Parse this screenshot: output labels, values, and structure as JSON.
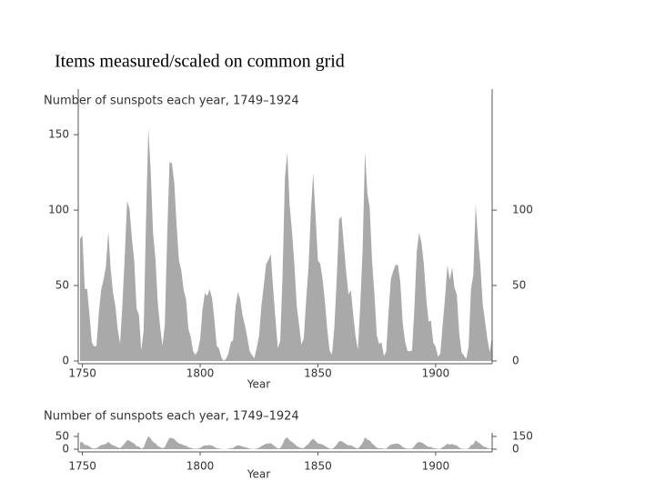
{
  "slide_title": "Items measured/scaled on common grid",
  "chart_data": [
    {
      "type": "area",
      "title": "Number of sunspots each year, 1749–1924",
      "xlabel": "Year",
      "color": "#a9a9a9",
      "x": [
        1749,
        1750,
        1751,
        1752,
        1753,
        1754,
        1755,
        1756,
        1757,
        1758,
        1759,
        1760,
        1761,
        1762,
        1763,
        1764,
        1765,
        1766,
        1767,
        1768,
        1769,
        1770,
        1771,
        1772,
        1773,
        1774,
        1775,
        1776,
        1777,
        1778,
        1779,
        1780,
        1781,
        1782,
        1783,
        1784,
        1785,
        1786,
        1787,
        1788,
        1789,
        1790,
        1791,
        1792,
        1793,
        1794,
        1795,
        1796,
        1797,
        1798,
        1799,
        1800,
        1801,
        1802,
        1803,
        1804,
        1805,
        1806,
        1807,
        1808,
        1809,
        1810,
        1811,
        1812,
        1813,
        1814,
        1815,
        1816,
        1817,
        1818,
        1819,
        1820,
        1821,
        1822,
        1823,
        1824,
        1825,
        1826,
        1827,
        1828,
        1829,
        1830,
        1831,
        1832,
        1833,
        1834,
        1835,
        1836,
        1837,
        1838,
        1839,
        1840,
        1841,
        1842,
        1843,
        1844,
        1845,
        1846,
        1847,
        1848,
        1849,
        1850,
        1851,
        1852,
        1853,
        1854,
        1855,
        1856,
        1857,
        1858,
        1859,
        1860,
        1861,
        1862,
        1863,
        1864,
        1865,
        1866,
        1867,
        1868,
        1869,
        1870,
        1871,
        1872,
        1873,
        1874,
        1875,
        1876,
        1877,
        1878,
        1879,
        1880,
        1881,
        1882,
        1883,
        1884,
        1885,
        1886,
        1887,
        1888,
        1889,
        1890,
        1891,
        1892,
        1893,
        1894,
        1895,
        1896,
        1897,
        1898,
        1899,
        1900,
        1901,
        1902,
        1903,
        1904,
        1905,
        1906,
        1907,
        1908,
        1909,
        1910,
        1911,
        1912,
        1913,
        1914,
        1915,
        1916,
        1917,
        1918,
        1919,
        1920,
        1921,
        1922,
        1923,
        1924
      ],
      "values": [
        80.9,
        83.4,
        47.7,
        47.8,
        30.7,
        12.2,
        9.6,
        10.2,
        32.4,
        47.6,
        54.0,
        62.9,
        85.9,
        61.2,
        45.1,
        36.4,
        20.9,
        11.4,
        37.8,
        69.8,
        106.1,
        100.8,
        81.6,
        66.5,
        34.8,
        30.6,
        7.0,
        19.8,
        92.5,
        154.4,
        125.9,
        84.8,
        68.1,
        38.5,
        22.8,
        10.2,
        24.1,
        82.9,
        132.0,
        130.9,
        118.1,
        89.9,
        66.6,
        60.0,
        46.9,
        41.0,
        21.3,
        16.0,
        6.4,
        4.1,
        6.8,
        14.5,
        34.0,
        45.0,
        43.1,
        47.5,
        42.2,
        28.1,
        10.1,
        8.1,
        2.5,
        0.0,
        1.4,
        5.0,
        12.2,
        13.9,
        35.4,
        45.8,
        41.1,
        30.1,
        23.9,
        15.6,
        6.6,
        4.0,
        1.8,
        8.5,
        16.6,
        36.3,
        49.6,
        64.2,
        67.0,
        70.9,
        47.8,
        27.5,
        8.5,
        13.2,
        56.9,
        121.5,
        138.3,
        103.2,
        85.7,
        64.6,
        36.7,
        24.2,
        10.7,
        15.0,
        40.1,
        61.5,
        98.5,
        124.7,
        96.3,
        66.6,
        64.5,
        54.1,
        39.0,
        20.6,
        6.7,
        4.3,
        22.7,
        54.8,
        93.8,
        95.8,
        77.2,
        59.1,
        44.0,
        47.0,
        30.5,
        16.3,
        7.3,
        37.6,
        74.0,
        139.0,
        111.2,
        101.6,
        66.2,
        44.7,
        17.0,
        11.3,
        12.4,
        3.4,
        6.0,
        32.3,
        54.3,
        59.7,
        63.7,
        63.5,
        52.2,
        25.4,
        13.1,
        6.8,
        6.3,
        7.1,
        35.6,
        73.0,
        85.1,
        78.0,
        64.0,
        41.8,
        26.2,
        26.7,
        12.1,
        9.5,
        2.7,
        5.0,
        24.4,
        42.0,
        63.5,
        53.8,
        62.0,
        48.5,
        43.9,
        18.6,
        5.7,
        3.6,
        1.4,
        9.6,
        47.4,
        57.1,
        103.9,
        80.6,
        63.6,
        37.6,
        26.1,
        14.2,
        5.8,
        16.7
      ],
      "xlim": [
        1749,
        1924
      ],
      "xticks": [
        1750,
        1800,
        1850,
        1900
      ],
      "ylim": [
        0,
        179
      ],
      "yticks": [
        0,
        50,
        100,
        150
      ],
      "y2lim": [
        0,
        179
      ],
      "y2ticks": [
        0,
        50,
        100
      ]
    },
    {
      "type": "area",
      "title": "Number of sunspots each year, 1749–1924",
      "xlabel": "Year",
      "color": "#a9a9a9",
      "axis": "y2",
      "x": [
        1749,
        1750,
        1751,
        1752,
        1753,
        1754,
        1755,
        1756,
        1757,
        1758,
        1759,
        1760,
        1761,
        1762,
        1763,
        1764,
        1765,
        1766,
        1767,
        1768,
        1769,
        1770,
        1771,
        1772,
        1773,
        1774,
        1775,
        1776,
        1777,
        1778,
        1779,
        1780,
        1781,
        1782,
        1783,
        1784,
        1785,
        1786,
        1787,
        1788,
        1789,
        1790,
        1791,
        1792,
        1793,
        1794,
        1795,
        1796,
        1797,
        1798,
        1799,
        1800,
        1801,
        1802,
        1803,
        1804,
        1805,
        1806,
        1807,
        1808,
        1809,
        1810,
        1811,
        1812,
        1813,
        1814,
        1815,
        1816,
        1817,
        1818,
        1819,
        1820,
        1821,
        1822,
        1823,
        1824,
        1825,
        1826,
        1827,
        1828,
        1829,
        1830,
        1831,
        1832,
        1833,
        1834,
        1835,
        1836,
        1837,
        1838,
        1839,
        1840,
        1841,
        1842,
        1843,
        1844,
        1845,
        1846,
        1847,
        1848,
        1849,
        1850,
        1851,
        1852,
        1853,
        1854,
        1855,
        1856,
        1857,
        1858,
        1859,
        1860,
        1861,
        1862,
        1863,
        1864,
        1865,
        1866,
        1867,
        1868,
        1869,
        1870,
        1871,
        1872,
        1873,
        1874,
        1875,
        1876,
        1877,
        1878,
        1879,
        1880,
        1881,
        1882,
        1883,
        1884,
        1885,
        1886,
        1887,
        1888,
        1889,
        1890,
        1891,
        1892,
        1893,
        1894,
        1895,
        1896,
        1897,
        1898,
        1899,
        1900,
        1901,
        1902,
        1903,
        1904,
        1905,
        1906,
        1907,
        1908,
        1909,
        1910,
        1911,
        1912,
        1913,
        1914,
        1915,
        1916,
        1917,
        1918,
        1919,
        1920,
        1921,
        1922,
        1923,
        1924
      ],
      "values": [
        80.9,
        83.4,
        47.7,
        47.8,
        30.7,
        12.2,
        9.6,
        10.2,
        32.4,
        47.6,
        54.0,
        62.9,
        85.9,
        61.2,
        45.1,
        36.4,
        20.9,
        11.4,
        37.8,
        69.8,
        106.1,
        100.8,
        81.6,
        66.5,
        34.8,
        30.6,
        7.0,
        19.8,
        92.5,
        154.4,
        125.9,
        84.8,
        68.1,
        38.5,
        22.8,
        10.2,
        24.1,
        82.9,
        132.0,
        130.9,
        118.1,
        89.9,
        66.6,
        60.0,
        46.9,
        41.0,
        21.3,
        16.0,
        6.4,
        4.1,
        6.8,
        14.5,
        34.0,
        45.0,
        43.1,
        47.5,
        42.2,
        28.1,
        10.1,
        8.1,
        2.5,
        0.0,
        1.4,
        5.0,
        12.2,
        13.9,
        35.4,
        45.8,
        41.1,
        30.1,
        23.9,
        15.6,
        6.6,
        4.0,
        1.8,
        8.5,
        16.6,
        36.3,
        49.6,
        64.2,
        67.0,
        70.9,
        47.8,
        27.5,
        8.5,
        13.2,
        56.9,
        121.5,
        138.3,
        103.2,
        85.7,
        64.6,
        36.7,
        24.2,
        10.7,
        15.0,
        40.1,
        61.5,
        98.5,
        124.7,
        96.3,
        66.6,
        64.5,
        54.1,
        39.0,
        20.6,
        6.7,
        4.3,
        22.7,
        54.8,
        93.8,
        95.8,
        77.2,
        59.1,
        44.0,
        47.0,
        30.5,
        16.3,
        7.3,
        37.6,
        74.0,
        139.0,
        111.2,
        101.6,
        66.2,
        44.7,
        17.0,
        11.3,
        12.4,
        3.4,
        6.0,
        32.3,
        54.3,
        59.7,
        63.7,
        63.5,
        52.2,
        25.4,
        13.1,
        6.8,
        6.3,
        7.1,
        35.6,
        73.0,
        85.1,
        78.0,
        64.0,
        41.8,
        26.2,
        26.7,
        12.1,
        9.5,
        2.7,
        5.0,
        24.4,
        42.0,
        63.5,
        53.8,
        62.0,
        48.5,
        43.9,
        18.6,
        5.7,
        3.6,
        1.4,
        9.6,
        47.4,
        57.1,
        103.9,
        80.6,
        63.6,
        37.6,
        26.1,
        14.2,
        5.8,
        16.7
      ],
      "xlim": [
        1749,
        1924
      ],
      "xticks": [
        1750,
        1800,
        1850,
        1900
      ],
      "ylim": [
        0,
        57
      ],
      "yticks": [
        0,
        50
      ],
      "y2lim": [
        0,
        171
      ],
      "y2ticks": [
        0,
        150
      ]
    }
  ]
}
